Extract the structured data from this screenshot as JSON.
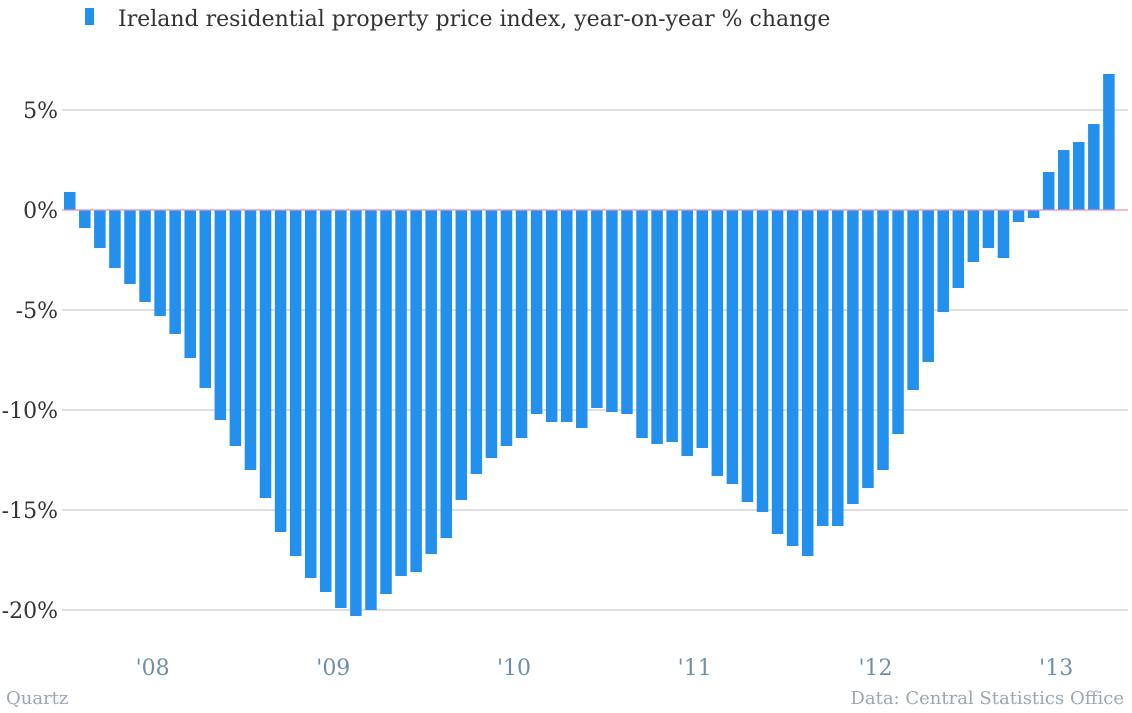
{
  "chart_data": {
    "type": "bar",
    "series": [
      {
        "name": "Ireland residential property price index, year-on-year % change",
        "values": [
          0.9,
          -0.9,
          -1.9,
          -2.9,
          -3.7,
          -4.6,
          -5.3,
          -6.2,
          -7.4,
          -8.9,
          -10.5,
          -11.8,
          -13.0,
          -14.4,
          -16.1,
          -17.3,
          -18.4,
          -19.1,
          -19.9,
          -20.3,
          -20.0,
          -19.2,
          -18.3,
          -18.1,
          -17.2,
          -16.4,
          -14.5,
          -13.2,
          -12.4,
          -11.8,
          -11.4,
          -10.2,
          -10.6,
          -10.6,
          -10.9,
          -9.9,
          -10.1,
          -10.2,
          -11.4,
          -11.7,
          -11.6,
          -12.3,
          -11.9,
          -13.3,
          -13.7,
          -14.6,
          -15.1,
          -16.2,
          -16.8,
          -17.3,
          -15.8,
          -15.8,
          -14.7,
          -13.9,
          -13.0,
          -11.2,
          -9.0,
          -7.6,
          -5.1,
          -3.9,
          -2.6,
          -1.9,
          -2.4,
          -0.6,
          -0.4,
          1.9,
          3.0,
          3.4,
          4.3,
          6.8
        ]
      }
    ],
    "ylim": [
      -22,
      8
    ],
    "y_ticks": [
      {
        "value": 5,
        "label": "5%"
      },
      {
        "value": 0,
        "label": "0%"
      },
      {
        "value": -5,
        "label": "-5%"
      },
      {
        "value": -10,
        "label": "-10%"
      },
      {
        "value": -15,
        "label": "-15%"
      },
      {
        "value": -20,
        "label": "-20%"
      }
    ],
    "x_ticks": [
      {
        "index": 5.5,
        "label": "'08"
      },
      {
        "index": 17.5,
        "label": "'09"
      },
      {
        "index": 29.5,
        "label": "'10"
      },
      {
        "index": 41.5,
        "label": "'11"
      },
      {
        "index": 53.5,
        "label": "'12"
      },
      {
        "index": 65.5,
        "label": "'13"
      }
    ],
    "grid": true,
    "legend_position": "top-left",
    "xlabel": "",
    "ylabel": ""
  },
  "footer": {
    "source_left": "Quartz",
    "source_right": "Data: Central Statistics Office"
  },
  "colors": {
    "bar": "#2290ec",
    "grid": "#bfbfbf",
    "zero_line": "#e88fbf"
  }
}
